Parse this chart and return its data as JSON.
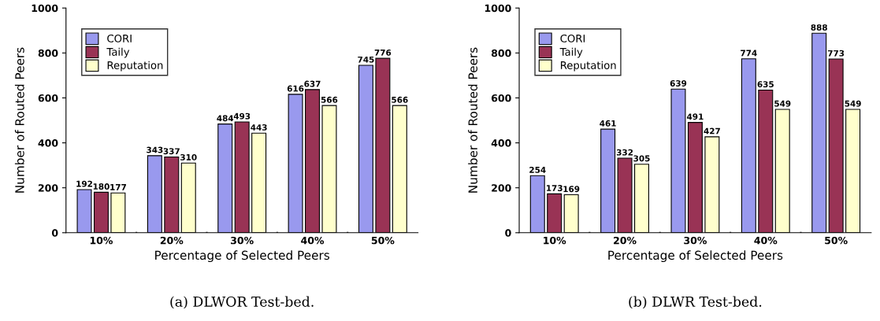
{
  "chart_data": [
    {
      "type": "bar",
      "xlabel": "Percentage of Selected Peers",
      "ylabel": "Number of Routed Peers",
      "categories": [
        "10%",
        "20%",
        "30%",
        "40%",
        "50%"
      ],
      "series": [
        {
          "name": "CORI",
          "color": "#9999ee",
          "values": [
            192,
            343,
            484,
            616,
            745
          ]
        },
        {
          "name": "Taily",
          "color": "#993355",
          "values": [
            180,
            337,
            493,
            637,
            776
          ]
        },
        {
          "name": "Reputation",
          "color": "#ffffcc",
          "values": [
            177,
            310,
            443,
            566,
            566
          ]
        }
      ],
      "ylim": [
        0,
        1000
      ],
      "yticks": [
        0,
        200,
        400,
        600,
        800,
        1000
      ],
      "legend": "top left",
      "data_labels": true,
      "grid": false,
      "annotations": [
        "(a) DLWOR Test-bed."
      ]
    },
    {
      "type": "bar",
      "xlabel": "Percentage of Selected Peers",
      "ylabel": "Number of Routed Peers",
      "categories": [
        "10%",
        "20%",
        "30%",
        "40%",
        "50%"
      ],
      "series": [
        {
          "name": "CORI",
          "color": "#9999ee",
          "values": [
            254,
            461,
            639,
            774,
            888
          ]
        },
        {
          "name": "Taily",
          "color": "#993355",
          "values": [
            173,
            332,
            491,
            635,
            773
          ]
        },
        {
          "name": "Reputation",
          "color": "#ffffcc",
          "values": [
            169,
            305,
            427,
            549,
            549
          ]
        }
      ],
      "ylim": [
        0,
        1000
      ],
      "yticks": [
        0,
        200,
        400,
        600,
        800,
        1000
      ],
      "legend": "top left",
      "data_labels": true,
      "grid": false,
      "annotations": [
        "(b) DLWR Test-bed."
      ]
    }
  ]
}
